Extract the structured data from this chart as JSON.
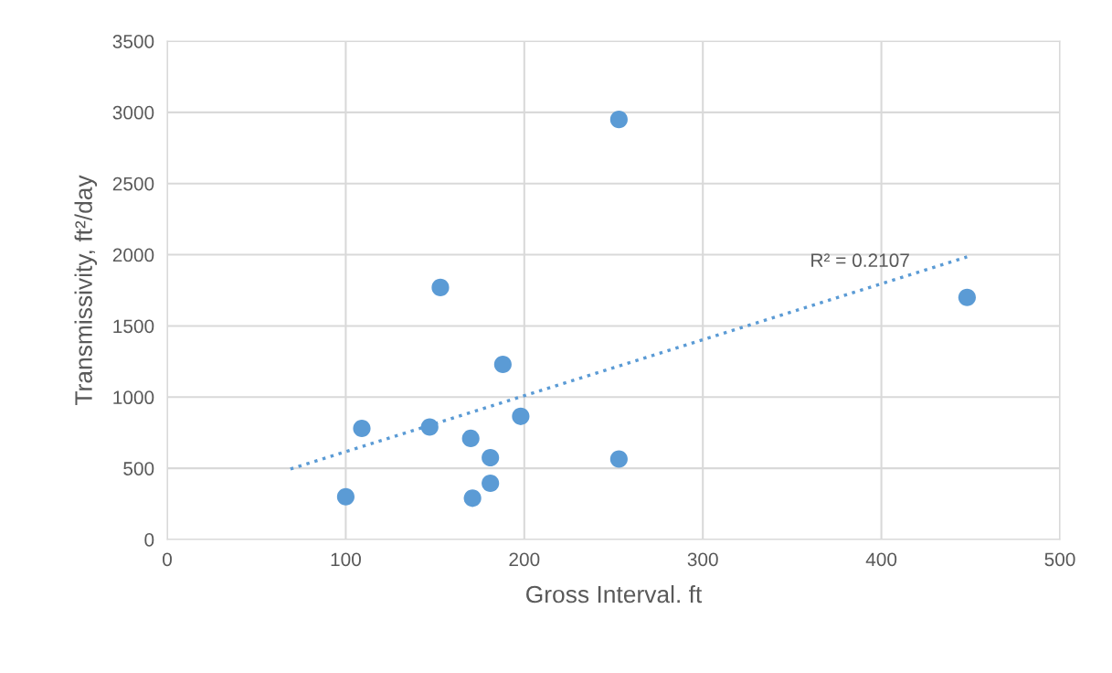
{
  "chart_data": {
    "type": "scatter",
    "xlabel": "Gross Interval. ft",
    "ylabel": "Transmissivity, ft²/day",
    "xlim": [
      0,
      500
    ],
    "xticks": [
      0,
      100,
      200,
      300,
      400,
      500
    ],
    "ylim": [
      0,
      3500
    ],
    "yticks": [
      0,
      500,
      1000,
      1500,
      2000,
      2500,
      3000,
      3500
    ],
    "grid": true,
    "marker": "circle",
    "series": [
      {
        "color": "#5b9bd5",
        "x": [
          100,
          109,
          147,
          153,
          170,
          171,
          181,
          181,
          188,
          198,
          253,
          253,
          448
        ],
        "values": [
          300,
          780,
          790,
          1770,
          710,
          290,
          575,
          395,
          1230,
          865,
          2950,
          565,
          1700
        ]
      },
      {
        "type": "line",
        "color": "#5b9bd5",
        "line_style": "dotted",
        "marker": "none",
        "x": [
          69,
          448
        ],
        "values": [
          495,
          1985
        ]
      }
    ],
    "annotations": [
      "R² = 0.2107"
    ]
  }
}
